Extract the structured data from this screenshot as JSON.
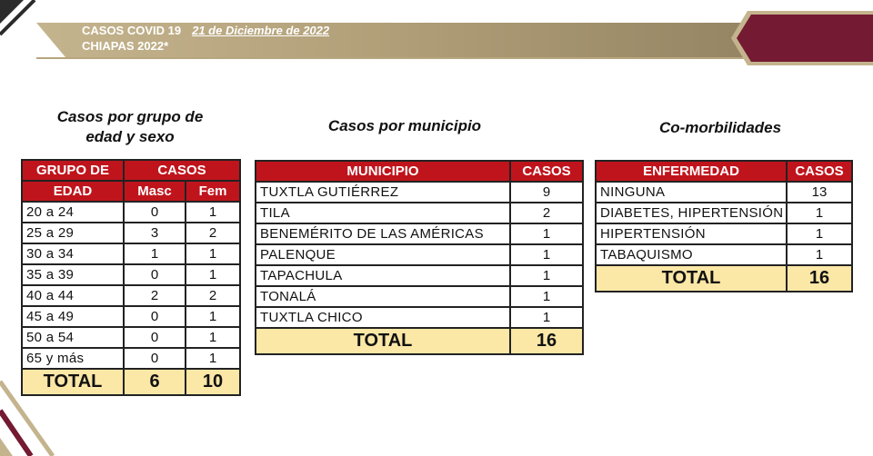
{
  "header": {
    "title": "CASOS COVID 19",
    "date": "21 de Diciembre de 2022",
    "subtitle": "CHIAPAS 2022*"
  },
  "colors": {
    "header_gold": "#c4b48e",
    "brand_maroon": "#741a32",
    "table_header_red": "#c0141c",
    "total_row_yellow": "#fbe7a6"
  },
  "age_section": {
    "title_line1": "Casos por grupo de",
    "title_line2": "edad y sexo",
    "header_group_line1": "GRUPO DE",
    "header_group_line2": "EDAD",
    "header_cases": "CASOS",
    "header_masc": "Masc",
    "header_fem": "Fem",
    "rows": [
      {
        "group": "20 a 24",
        "masc": "0",
        "fem": "1"
      },
      {
        "group": "25 a 29",
        "masc": "3",
        "fem": "2"
      },
      {
        "group": "30 a 34",
        "masc": "1",
        "fem": "1"
      },
      {
        "group": "35 a 39",
        "masc": "0",
        "fem": "1"
      },
      {
        "group": "40 a 44",
        "masc": "2",
        "fem": "2"
      },
      {
        "group": "45 a 49",
        "masc": "0",
        "fem": "1"
      },
      {
        "group": "50 a 54",
        "masc": "0",
        "fem": "1"
      },
      {
        "group": "65 y más",
        "masc": "0",
        "fem": "1"
      }
    ],
    "total_label": "TOTAL",
    "total_masc": "6",
    "total_fem": "10"
  },
  "municipio_section": {
    "title": "Casos por municipio",
    "header_municipio": "MUNICIPIO",
    "header_cases": "CASOS",
    "rows": [
      {
        "name": "TUXTLA GUTIÉRREZ",
        "cases": "9"
      },
      {
        "name": "TILA",
        "cases": "2"
      },
      {
        "name": "BENEMÉRITO DE LAS AMÉRICAS",
        "cases": "1"
      },
      {
        "name": "PALENQUE",
        "cases": "1"
      },
      {
        "name": "TAPACHULA",
        "cases": "1"
      },
      {
        "name": "TONALÁ",
        "cases": "1"
      },
      {
        "name": "TUXTLA CHICO",
        "cases": "1"
      }
    ],
    "total_label": "TOTAL",
    "total_cases": "16"
  },
  "comorbidity_section": {
    "title": "Co-morbilidades",
    "header_disease": "ENFERMEDAD",
    "header_cases": "CASOS",
    "rows": [
      {
        "name": "NINGUNA",
        "cases": "13"
      },
      {
        "name": "DIABETES, HIPERTENSIÓN",
        "cases": "1"
      },
      {
        "name": "HIPERTENSIÓN",
        "cases": "1"
      },
      {
        "name": "TABAQUISMO",
        "cases": "1"
      }
    ],
    "total_label": "TOTAL",
    "total_cases": "16"
  }
}
